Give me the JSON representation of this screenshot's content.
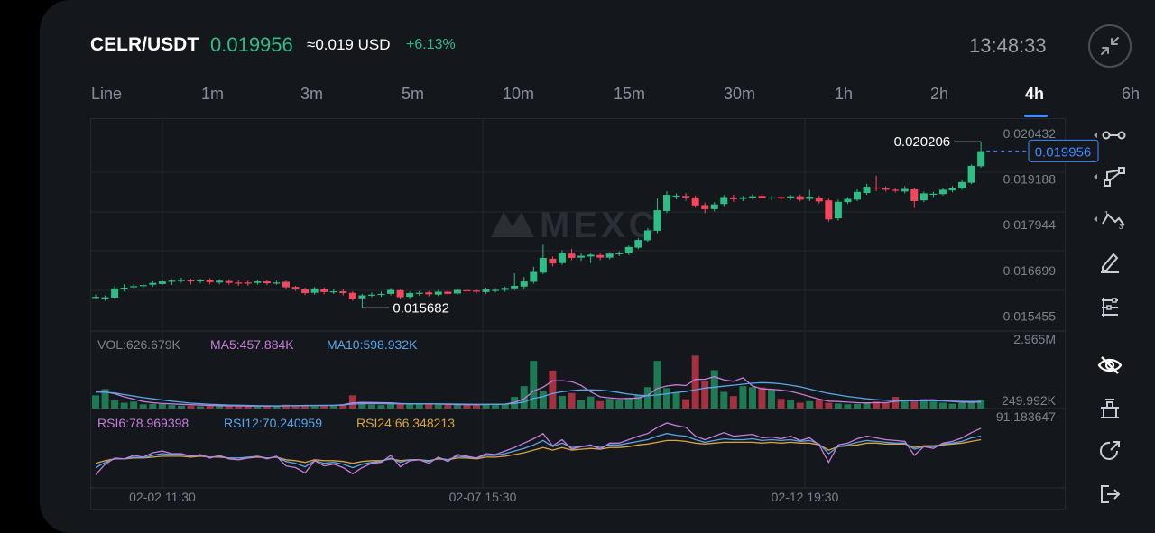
{
  "header": {
    "symbol": "CELR/USDT",
    "price": "0.019956",
    "usd_price": "≈0.019 USD",
    "change": "+6.13%",
    "time": "13:48:33"
  },
  "tabs": [
    {
      "label": "Line",
      "active": false
    },
    {
      "label": "1m",
      "active": false
    },
    {
      "label": "3m",
      "active": false
    },
    {
      "label": "5m",
      "active": false
    },
    {
      "label": "10m",
      "active": false
    },
    {
      "label": "15m",
      "active": false
    },
    {
      "label": "30m",
      "active": false
    },
    {
      "label": "1h",
      "active": false
    },
    {
      "label": "2h",
      "active": false
    },
    {
      "label": "4h",
      "active": true
    },
    {
      "label": "6h",
      "active": false
    }
  ],
  "watermark": "MEXC",
  "colors": {
    "up": "#2ebd85",
    "down": "#f6465d",
    "accent": "#3d8bff",
    "ma5": "#c77dd9",
    "ma10": "#5aa6e8",
    "rsi24": "#d9a441",
    "grid": "#23272e",
    "bg": "#14171c"
  },
  "tools": [
    "horizontal-line-icon",
    "trend-line-icon",
    "polyline-icon",
    "pencil-icon",
    "fibonacci-icon",
    "eye-off-icon",
    "indicator-icon",
    "share-icon",
    "exit-icon"
  ],
  "chart_data": {
    "type": "candlestick",
    "price_axis": {
      "ticks": [
        "0.020432",
        "0.019188",
        "0.017944",
        "0.016699",
        "0.015455"
      ],
      "ylim": [
        0.01505,
        0.02085
      ]
    },
    "current_price_label": "0.019956",
    "high_marker": {
      "label": "0.020206",
      "value": 0.020206
    },
    "low_marker": {
      "label": "0.015682",
      "value": 0.015682
    },
    "x_labels": [
      "02-02 11:30",
      "02-07 15:30",
      "02-12 19:30"
    ],
    "candles": [
      [
        0.01595,
        0.01598,
        0.01592,
        0.01604
      ],
      [
        0.01593,
        0.01597,
        0.01587,
        0.01602
      ],
      [
        0.01596,
        0.01621,
        0.01592,
        0.01628
      ],
      [
        0.01619,
        0.01623,
        0.01613,
        0.01633
      ],
      [
        0.01624,
        0.01627,
        0.01618,
        0.01632
      ],
      [
        0.01627,
        0.0163,
        0.01622,
        0.01634
      ],
      [
        0.01631,
        0.01636,
        0.01626,
        0.01641
      ],
      [
        0.01633,
        0.0164,
        0.0163,
        0.01646
      ],
      [
        0.0164,
        0.01642,
        0.0163,
        0.01646
      ],
      [
        0.01641,
        0.01644,
        0.01636,
        0.0165
      ],
      [
        0.01643,
        0.0164,
        0.01632,
        0.01647
      ],
      [
        0.0164,
        0.01643,
        0.01635,
        0.01647
      ],
      [
        0.01645,
        0.01638,
        0.01632,
        0.01649
      ],
      [
        0.01637,
        0.01642,
        0.01632,
        0.01646
      ],
      [
        0.01641,
        0.01636,
        0.01631,
        0.01646
      ],
      [
        0.01637,
        0.01635,
        0.01628,
        0.01643
      ],
      [
        0.01637,
        0.01636,
        0.01628,
        0.01642
      ],
      [
        0.01636,
        0.0164,
        0.01631,
        0.01644
      ],
      [
        0.0164,
        0.01635,
        0.0163,
        0.01644
      ],
      [
        0.01636,
        0.01637,
        0.01631,
        0.01642
      ],
      [
        0.01639,
        0.01624,
        0.01619,
        0.01642
      ],
      [
        0.01625,
        0.0162,
        0.01614,
        0.01628
      ],
      [
        0.01619,
        0.01608,
        0.01603,
        0.01623
      ],
      [
        0.01609,
        0.01621,
        0.01604,
        0.01625
      ],
      [
        0.0162,
        0.01611,
        0.01605,
        0.01624
      ],
      [
        0.01612,
        0.01613,
        0.01606,
        0.01619
      ],
      [
        0.01613,
        0.01608,
        0.01602,
        0.01618
      ],
      [
        0.01609,
        0.01592,
        0.01587,
        0.01613
      ],
      [
        0.01594,
        0.01602,
        0.01568,
        0.01606
      ],
      [
        0.01603,
        0.01604,
        0.01597,
        0.0161
      ],
      [
        0.01605,
        0.01606,
        0.01598,
        0.01612
      ],
      [
        0.01606,
        0.01617,
        0.01602,
        0.01622
      ],
      [
        0.01616,
        0.01597,
        0.01592,
        0.0162
      ],
      [
        0.01598,
        0.01608,
        0.01594,
        0.01612
      ],
      [
        0.01609,
        0.01609,
        0.01601,
        0.01614
      ],
      [
        0.0161,
        0.01605,
        0.01599,
        0.01614
      ],
      [
        0.01604,
        0.01612,
        0.016,
        0.01617
      ],
      [
        0.01612,
        0.01606,
        0.01601,
        0.01617
      ],
      [
        0.01607,
        0.01617,
        0.01603,
        0.01621
      ],
      [
        0.01616,
        0.01615,
        0.01608,
        0.0162
      ],
      [
        0.01615,
        0.01612,
        0.01606,
        0.0162
      ],
      [
        0.01611,
        0.01618,
        0.01606,
        0.01623
      ],
      [
        0.01617,
        0.01617,
        0.0161,
        0.01622
      ],
      [
        0.01617,
        0.01622,
        0.01612,
        0.01626
      ],
      [
        0.01621,
        0.01628,
        0.01616,
        0.01662
      ],
      [
        0.01626,
        0.0164,
        0.0162,
        0.01652
      ],
      [
        0.01639,
        0.01666,
        0.01634,
        0.0168
      ],
      [
        0.01664,
        0.01704,
        0.0166,
        0.0174
      ],
      [
        0.01702,
        0.01689,
        0.01681,
        0.01708
      ],
      [
        0.0169,
        0.01718,
        0.01685,
        0.01725
      ],
      [
        0.01716,
        0.01704,
        0.01698,
        0.01729
      ],
      [
        0.01705,
        0.0171,
        0.01696,
        0.01716
      ],
      [
        0.01708,
        0.01713,
        0.0169,
        0.01719
      ],
      [
        0.01712,
        0.01705,
        0.01698,
        0.01719
      ],
      [
        0.01705,
        0.01716,
        0.017,
        0.0172
      ],
      [
        0.01715,
        0.01717,
        0.01709,
        0.01722
      ],
      [
        0.01717,
        0.01734,
        0.01712,
        0.01738
      ],
      [
        0.01732,
        0.01753,
        0.01728,
        0.01758
      ],
      [
        0.01752,
        0.01779,
        0.01748,
        0.01785
      ],
      [
        0.01778,
        0.01834,
        0.01771,
        0.01866
      ],
      [
        0.01832,
        0.01876,
        0.01826,
        0.01886
      ],
      [
        0.01874,
        0.01874,
        0.01864,
        0.0188
      ],
      [
        0.01873,
        0.01869,
        0.0186,
        0.01881
      ],
      [
        0.01869,
        0.01847,
        0.01841,
        0.01874
      ],
      [
        0.01848,
        0.01837,
        0.01826,
        0.01855
      ],
      [
        0.01837,
        0.0185,
        0.01831,
        0.01856
      ],
      [
        0.01851,
        0.0187,
        0.01845,
        0.01875
      ],
      [
        0.01869,
        0.01864,
        0.01857,
        0.01876
      ],
      [
        0.01865,
        0.01869,
        0.01859,
        0.01873
      ],
      [
        0.01868,
        0.01872,
        0.01864,
        0.01878
      ],
      [
        0.01873,
        0.01867,
        0.0186,
        0.01877
      ],
      [
        0.01867,
        0.01869,
        0.01862,
        0.01873
      ],
      [
        0.0187,
        0.01866,
        0.01859,
        0.01874
      ],
      [
        0.01867,
        0.01872,
        0.01862,
        0.01876
      ],
      [
        0.01872,
        0.01863,
        0.01858,
        0.01877
      ],
      [
        0.01865,
        0.01871,
        0.01859,
        0.01889
      ],
      [
        0.01868,
        0.01858,
        0.01852,
        0.01874
      ],
      [
        0.01861,
        0.01809,
        0.01803,
        0.01866
      ],
      [
        0.01812,
        0.01857,
        0.01806,
        0.01863
      ],
      [
        0.01856,
        0.01865,
        0.01851,
        0.0187
      ],
      [
        0.01863,
        0.01884,
        0.01859,
        0.01891
      ],
      [
        0.01881,
        0.01898,
        0.01876,
        0.01906
      ],
      [
        0.01896,
        0.01893,
        0.01886,
        0.01928
      ],
      [
        0.01894,
        0.0189,
        0.01885,
        0.01899
      ],
      [
        0.0189,
        0.01888,
        0.01882,
        0.01896
      ],
      [
        0.01885,
        0.01892,
        0.0188,
        0.019
      ],
      [
        0.01891,
        0.01859,
        0.0184,
        0.01896
      ],
      [
        0.01861,
        0.0188,
        0.01856,
        0.01885
      ],
      [
        0.01879,
        0.01879,
        0.0187,
        0.01884
      ],
      [
        0.01878,
        0.0189,
        0.01874,
        0.01895
      ],
      [
        0.01888,
        0.01895,
        0.01883,
        0.019
      ],
      [
        0.01894,
        0.01911,
        0.0189,
        0.01916
      ],
      [
        0.01909,
        0.01955,
        0.01905,
        0.01959
      ],
      [
        0.01954,
        0.01995,
        0.0195,
        0.02021
      ]
    ],
    "volume": {
      "label": "VOL:626.679K",
      "ma5_label": "MA5:457.884K",
      "ma10_label": "MA10:598.932K",
      "axis_top": "2.965M",
      "axis_bottom": "249.992K",
      "ylim": [
        0,
        2965
      ],
      "values": [
        680,
        1000,
        420,
        300,
        360,
        220,
        240,
        230,
        180,
        150,
        140,
        120,
        160,
        130,
        110,
        150,
        120,
        100,
        130,
        120,
        200,
        150,
        180,
        120,
        140,
        160,
        170,
        680,
        350,
        200,
        180,
        260,
        220,
        280,
        240,
        220,
        200,
        180,
        210,
        190,
        200,
        230,
        220,
        250,
        600,
        1150,
        2450,
        900,
        1950,
        650,
        800,
        420,
        620,
        380,
        500,
        420,
        560,
        680,
        1100,
        2450,
        1050,
        820,
        480,
        2720,
        1400,
        1970,
        860,
        640,
        1150,
        1100,
        1080,
        980,
        500,
        420,
        300,
        380,
        460,
        300,
        260,
        220,
        240,
        320,
        360,
        300,
        600,
        420,
        380,
        480,
        360,
        300,
        250,
        300,
        380,
        440
      ],
      "ma5": [
        900,
        860,
        760,
        600,
        480,
        360,
        300,
        260,
        240,
        220,
        200,
        180,
        160,
        150,
        140,
        140,
        130,
        130,
        130,
        130,
        140,
        150,
        160,
        160,
        160,
        160,
        200,
        290,
        310,
        310,
        300,
        290,
        260,
        240,
        240,
        240,
        230,
        220,
        210,
        200,
        200,
        210,
        220,
        230,
        320,
        500,
        900,
        1100,
        1420,
        1430,
        1380,
        1190,
        860,
        600,
        550,
        510,
        520,
        540,
        680,
        1040,
        1160,
        1220,
        1180,
        1500,
        1500,
        1640,
        1470,
        1400,
        1580,
        1160,
        1010,
        990,
        950,
        880,
        760,
        620,
        480,
        380,
        360,
        330,
        300,
        290,
        300,
        300,
        370,
        400,
        420,
        440,
        450,
        400,
        360,
        330,
        320,
        340
      ],
      "ma10": [
        850,
        840,
        800,
        720,
        640,
        560,
        500,
        440,
        380,
        330,
        280,
        250,
        220,
        200,
        180,
        170,
        160,
        150,
        145,
        140,
        145,
        150,
        155,
        158,
        160,
        165,
        180,
        230,
        250,
        250,
        250,
        250,
        240,
        240,
        240,
        240,
        240,
        235,
        230,
        225,
        220,
        220,
        220,
        225,
        260,
        340,
        520,
        620,
        780,
        860,
        920,
        960,
        960,
        950,
        900,
        820,
        740,
        690,
        660,
        700,
        760,
        830,
        870,
        970,
        1050,
        1100,
        1150,
        1200,
        1250,
        1300,
        1330,
        1310,
        1270,
        1200,
        1120,
        1000,
        880,
        780,
        700,
        620,
        560,
        500,
        460,
        420,
        410,
        400,
        400,
        400,
        400,
        390,
        380,
        370,
        360,
        360
      ]
    },
    "rsi": {
      "rsi6_label": "RSI6:78.969398",
      "rsi12_label": "RSI12:70.240959",
      "rsi24_label": "RSI24:66.348213",
      "axis_top": "91.183647",
      "ylim": [
        15,
        91.183647
      ],
      "rsi6": [
        26,
        38,
        45,
        44,
        48,
        46,
        51,
        53,
        50,
        50,
        47,
        49,
        45,
        48,
        44,
        43,
        45,
        47,
        44,
        47,
        36,
        34,
        28,
        42,
        36,
        38,
        34,
        27,
        34,
        39,
        40,
        48,
        35,
        42,
        43,
        39,
        46,
        41,
        49,
        47,
        45,
        50,
        49,
        53,
        57,
        62,
        67,
        73,
        59,
        66,
        55,
        58,
        60,
        55,
        62,
        62,
        66,
        70,
        73,
        80,
        85,
        82,
        80,
        70,
        66,
        70,
        74,
        70,
        71,
        72,
        68,
        69,
        67,
        70,
        65,
        68,
        60,
        40,
        60,
        62,
        67,
        70,
        68,
        66,
        65,
        64,
        48,
        58,
        56,
        62,
        64,
        68,
        74,
        79
      ],
      "rsi12": [
        34,
        40,
        44,
        44,
        46,
        45,
        48,
        50,
        49,
        49,
        47,
        48,
        46,
        47,
        45,
        45,
        46,
        47,
        45,
        46,
        41,
        39,
        35,
        42,
        39,
        40,
        38,
        34,
        38,
        40,
        41,
        45,
        40,
        43,
        43,
        41,
        45,
        43,
        47,
        46,
        45,
        48,
        48,
        50,
        53,
        56,
        60,
        65,
        58,
        62,
        57,
        58,
        59,
        57,
        60,
        60,
        62,
        64,
        66,
        70,
        73,
        71,
        70,
        66,
        63,
        65,
        67,
        66,
        66,
        67,
        65,
        66,
        65,
        66,
        64,
        65,
        61,
        50,
        58,
        60,
        63,
        65,
        64,
        63,
        62,
        62,
        55,
        58,
        58,
        61,
        62,
        64,
        68,
        70
      ],
      "rsi24": [
        39,
        42,
        44,
        44,
        45,
        45,
        46,
        47,
        47,
        47,
        46,
        47,
        46,
        46,
        45,
        45,
        45,
        46,
        45,
        46,
        43,
        42,
        40,
        43,
        42,
        42,
        41,
        39,
        41,
        42,
        42,
        44,
        42,
        43,
        43,
        42,
        44,
        43,
        45,
        45,
        44,
        46,
        46,
        47,
        49,
        51,
        54,
        57,
        54,
        57,
        54,
        55,
        56,
        55,
        57,
        57,
        58,
        60,
        61,
        63,
        65,
        65,
        64,
        62,
        61,
        62,
        63,
        63,
        63,
        63,
        62,
        63,
        62,
        63,
        62,
        62,
        60,
        54,
        58,
        59,
        60,
        62,
        62,
        61,
        61,
        61,
        57,
        59,
        59,
        60,
        61,
        62,
        64,
        66
      ]
    }
  }
}
